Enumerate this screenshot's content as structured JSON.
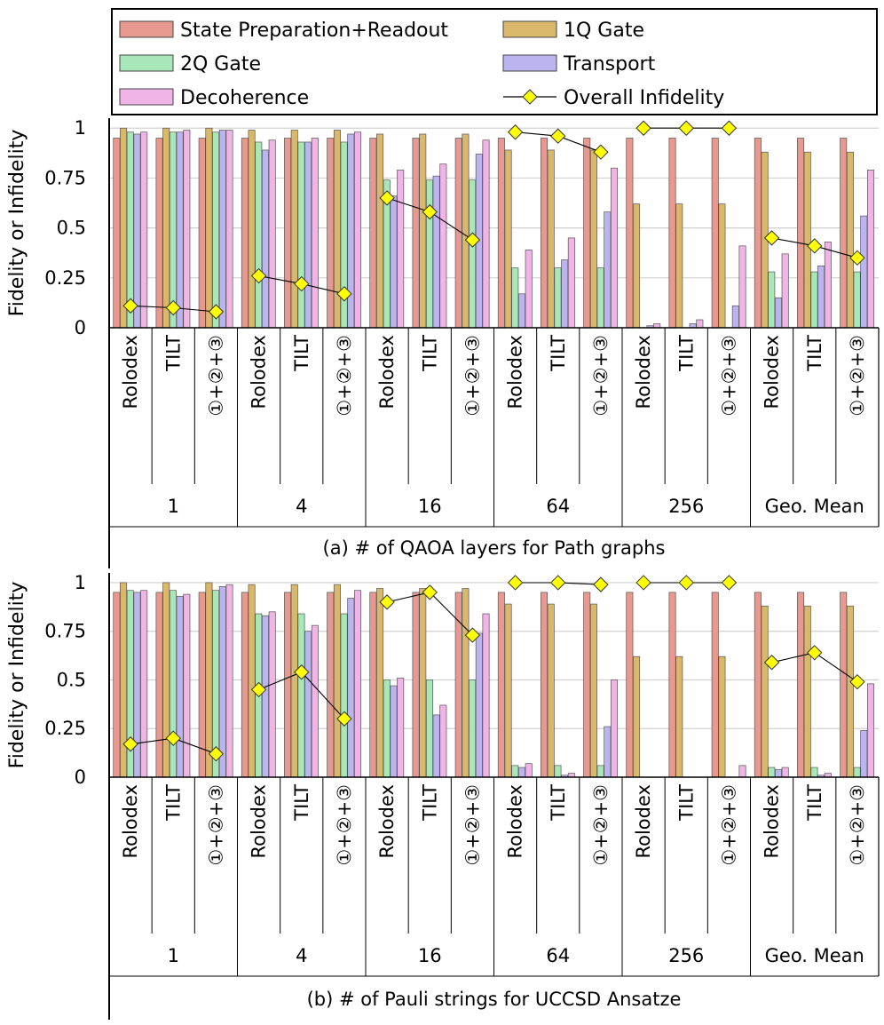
{
  "legend": {
    "items": [
      {
        "key": "sp",
        "label": "State Preparation+Readout",
        "color": "#e8998f",
        "kind": "bar"
      },
      {
        "key": "q1",
        "label": "1Q Gate",
        "color": "#d9b86b",
        "kind": "bar"
      },
      {
        "key": "q2",
        "label": "2Q Gate",
        "color": "#a8e8b8",
        "kind": "bar"
      },
      {
        "key": "tr",
        "label": "Transport",
        "color": "#bcb4ee",
        "kind": "bar"
      },
      {
        "key": "dc",
        "label": "Decoherence",
        "color": "#f0b4e6",
        "kind": "bar"
      },
      {
        "key": "ov",
        "label": "Overall Infidelity",
        "color": "#ffff00",
        "kind": "line"
      }
    ]
  },
  "chart_data": [
    {
      "type": "bar",
      "caption": "(a) # of QAOA layers for Path graphs",
      "ylabel": "Fidelity or Infidelity",
      "ylim": [
        0,
        1.05
      ],
      "yticks": [
        0,
        0.25,
        0.5,
        0.75,
        1
      ],
      "ytick_labels": [
        "0",
        "0.25",
        "0.5",
        "0.75",
        "1"
      ],
      "grid": true,
      "groups": [
        "1",
        "4",
        "16",
        "64",
        "256",
        "Geo. Mean"
      ],
      "categories": [
        "Rolodex",
        "TILT",
        "①+②+③"
      ],
      "series": [
        {
          "key": "sp",
          "name": "State Preparation+Readout",
          "values": [
            [
              0.95,
              0.95,
              0.95
            ],
            [
              0.95,
              0.95,
              0.95
            ],
            [
              0.95,
              0.95,
              0.95
            ],
            [
              0.95,
              0.95,
              0.95
            ],
            [
              0.95,
              0.95,
              0.95
            ],
            [
              0.95,
              0.95,
              0.95
            ]
          ]
        },
        {
          "key": "q1",
          "name": "1Q Gate",
          "values": [
            [
              1.0,
              1.0,
              1.0
            ],
            [
              0.99,
              0.99,
              0.99
            ],
            [
              0.97,
              0.97,
              0.97
            ],
            [
              0.89,
              0.89,
              0.89
            ],
            [
              0.62,
              0.62,
              0.62
            ],
            [
              0.88,
              0.88,
              0.88
            ]
          ]
        },
        {
          "key": "q2",
          "name": "2Q Gate",
          "values": [
            [
              0.98,
              0.98,
              0.98
            ],
            [
              0.93,
              0.93,
              0.93
            ],
            [
              0.74,
              0.74,
              0.74
            ],
            [
              0.3,
              0.3,
              0.3
            ],
            [
              0.0,
              0.0,
              0.0
            ],
            [
              0.28,
              0.28,
              0.28
            ]
          ]
        },
        {
          "key": "tr",
          "name": "Transport",
          "values": [
            [
              0.97,
              0.98,
              0.99
            ],
            [
              0.89,
              0.93,
              0.97
            ],
            [
              0.66,
              0.76,
              0.87
            ],
            [
              0.17,
              0.34,
              0.58
            ],
            [
              0.01,
              0.02,
              0.11
            ],
            [
              0.15,
              0.31,
              0.56
            ]
          ]
        },
        {
          "key": "dc",
          "name": "Decoherence",
          "values": [
            [
              0.98,
              0.99,
              0.99
            ],
            [
              0.94,
              0.95,
              0.98
            ],
            [
              0.79,
              0.82,
              0.94
            ],
            [
              0.39,
              0.45,
              0.8
            ],
            [
              0.02,
              0.04,
              0.41
            ],
            [
              0.37,
              0.43,
              0.79
            ]
          ]
        },
        {
          "key": "ov",
          "name": "Overall Infidelity",
          "values": [
            [
              0.11,
              0.1,
              0.08
            ],
            [
              0.26,
              0.22,
              0.17
            ],
            [
              0.65,
              0.58,
              0.44
            ],
            [
              0.98,
              0.96,
              0.88
            ],
            [
              1.0,
              1.0,
              1.0
            ],
            [
              0.45,
              0.41,
              0.35
            ]
          ]
        }
      ]
    },
    {
      "type": "bar",
      "caption": "(b) # of Pauli strings for UCCSD Ansatze",
      "ylabel": "Fidelity or Infidelity",
      "ylim": [
        0,
        1.05
      ],
      "yticks": [
        0,
        0.25,
        0.5,
        0.75,
        1
      ],
      "ytick_labels": [
        "0",
        "0.25",
        "0.5",
        "0.75",
        "1"
      ],
      "grid": true,
      "groups": [
        "1",
        "4",
        "16",
        "64",
        "256",
        "Geo. Mean"
      ],
      "categories": [
        "Rolodex",
        "TILT",
        "①+②+③"
      ],
      "series": [
        {
          "key": "sp",
          "name": "State Preparation+Readout",
          "values": [
            [
              0.95,
              0.95,
              0.95
            ],
            [
              0.95,
              0.95,
              0.95
            ],
            [
              0.95,
              0.95,
              0.95
            ],
            [
              0.95,
              0.95,
              0.95
            ],
            [
              0.95,
              0.95,
              0.95
            ],
            [
              0.95,
              0.95,
              0.95
            ]
          ]
        },
        {
          "key": "q1",
          "name": "1Q Gate",
          "values": [
            [
              1.0,
              1.0,
              1.0
            ],
            [
              0.99,
              0.99,
              0.99
            ],
            [
              0.97,
              0.97,
              0.97
            ],
            [
              0.89,
              0.89,
              0.89
            ],
            [
              0.62,
              0.62,
              0.62
            ],
            [
              0.88,
              0.88,
              0.88
            ]
          ]
        },
        {
          "key": "q2",
          "name": "2Q Gate",
          "values": [
            [
              0.96,
              0.96,
              0.96
            ],
            [
              0.84,
              0.84,
              0.84
            ],
            [
              0.5,
              0.5,
              0.5
            ],
            [
              0.06,
              0.06,
              0.06
            ],
            [
              0.0,
              0.0,
              0.0
            ],
            [
              0.05,
              0.05,
              0.05
            ]
          ]
        },
        {
          "key": "tr",
          "name": "Transport",
          "values": [
            [
              0.95,
              0.93,
              0.98
            ],
            [
              0.83,
              0.75,
              0.92
            ],
            [
              0.47,
              0.32,
              0.74
            ],
            [
              0.05,
              0.01,
              0.26
            ],
            [
              0.0,
              0.0,
              0.0
            ],
            [
              0.04,
              0.01,
              0.24
            ]
          ]
        },
        {
          "key": "dc",
          "name": "Decoherence",
          "values": [
            [
              0.96,
              0.94,
              0.99
            ],
            [
              0.85,
              0.78,
              0.96
            ],
            [
              0.51,
              0.37,
              0.84
            ],
            [
              0.07,
              0.02,
              0.5
            ],
            [
              0.0,
              0.0,
              0.06
            ],
            [
              0.05,
              0.02,
              0.48
            ]
          ]
        },
        {
          "key": "ov",
          "name": "Overall Infidelity",
          "values": [
            [
              0.17,
              0.2,
              0.12
            ],
            [
              0.45,
              0.54,
              0.3
            ],
            [
              0.9,
              0.95,
              0.73
            ],
            [
              1.0,
              1.0,
              0.99
            ],
            [
              1.0,
              1.0,
              1.0
            ],
            [
              0.59,
              0.64,
              0.49
            ]
          ]
        }
      ]
    }
  ]
}
